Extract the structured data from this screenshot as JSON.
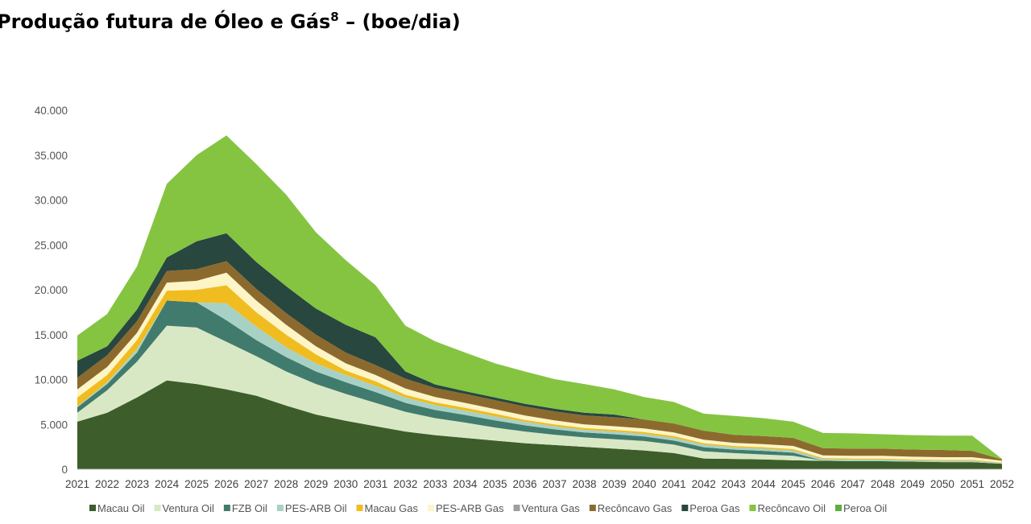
{
  "title": {
    "main": "Produção futura de Óleo e Gás",
    "sup": "8",
    "suffix": " – (boe/dia)"
  },
  "chart_data": {
    "type": "area",
    "stacked": true,
    "title": "Produção futura de Óleo e Gás8 – (boe/dia)",
    "xlabel": "",
    "ylabel": "",
    "ylim": [
      0,
      40000
    ],
    "yticks": [
      0,
      5000,
      10000,
      15000,
      20000,
      25000,
      30000,
      35000,
      40000
    ],
    "ytick_labels": [
      "0",
      "5.000",
      "10.000",
      "15.000",
      "20.000",
      "25.000",
      "30.000",
      "35.000",
      "40.000"
    ],
    "grid": false,
    "legend_position": "bottom",
    "categories": [
      "2021",
      "2022",
      "2023",
      "2024",
      "2025",
      "2026",
      "2027",
      "2028",
      "2029",
      "2030",
      "2031",
      "2032",
      "2033",
      "2034",
      "2035",
      "2036",
      "2037",
      "2038",
      "2039",
      "2040",
      "2041",
      "2042",
      "2043",
      "2044",
      "2045",
      "2046",
      "2047",
      "2048",
      "2049",
      "2050",
      "2051",
      "2052"
    ],
    "series": [
      {
        "name": "Macau Oil",
        "color": "#3d5e2b",
        "values": [
          5300,
          6300,
          8000,
          9900,
          9500,
          8900,
          8200,
          7100,
          6100,
          5400,
          4800,
          4200,
          3800,
          3500,
          3200,
          2900,
          2700,
          2500,
          2300,
          2100,
          1800,
          1200,
          1150,
          1100,
          1000,
          950,
          900,
          900,
          850,
          800,
          800,
          600
        ]
      },
      {
        "name": "Ventura Oil",
        "color": "#d9e8c4",
        "values": [
          1000,
          2500,
          4000,
          6100,
          6300,
          5300,
          4400,
          3800,
          3400,
          3000,
          2600,
          2200,
          1900,
          1700,
          1450,
          1300,
          1150,
          1050,
          1050,
          1050,
          950,
          800,
          650,
          550,
          500,
          0,
          0,
          0,
          0,
          0,
          0,
          0
        ]
      },
      {
        "name": "FZB Oil",
        "color": "#417b6d",
        "values": [
          600,
          700,
          1000,
          2800,
          2800,
          2400,
          1800,
          1600,
          1400,
          1300,
          1200,
          1000,
          900,
          850,
          800,
          700,
          600,
          550,
          550,
          500,
          450,
          450,
          400,
          400,
          350,
          0,
          0,
          0,
          0,
          0,
          0,
          0
        ]
      },
      {
        "name": "PES-ARB Oil",
        "color": "#a8d1c5",
        "values": [
          100,
          200,
          400,
          0,
          0,
          1900,
          1500,
          1100,
          900,
          800,
          700,
          600,
          550,
          500,
          450,
          400,
          350,
          300,
          300,
          300,
          300,
          300,
          250,
          250,
          250,
          200,
          200,
          200,
          150,
          150,
          150,
          100
        ]
      },
      {
        "name": "Macau Gas",
        "color": "#f0bc20",
        "values": [
          1000,
          800,
          1000,
          1100,
          1400,
          2000,
          1600,
          1400,
          1000,
          500,
          500,
          300,
          300,
          300,
          300,
          200,
          200,
          200,
          200,
          200,
          200,
          150,
          150,
          150,
          150,
          100,
          100,
          100,
          100,
          100,
          100,
          50
        ]
      },
      {
        "name": "PES-ARB Gas",
        "color": "#fdf5c5",
        "values": [
          900,
          900,
          800,
          900,
          1000,
          1400,
          1300,
          1100,
          900,
          800,
          700,
          700,
          600,
          550,
          500,
          500,
          450,
          400,
          400,
          400,
          400,
          400,
          350,
          350,
          350,
          300,
          300,
          300,
          300,
          300,
          300,
          200
        ]
      },
      {
        "name": "Ventura Gas",
        "color": "#9e9e9e",
        "values": [
          0,
          0,
          0,
          0,
          0,
          0,
          0,
          0,
          0,
          0,
          0,
          0,
          0,
          0,
          0,
          0,
          0,
          0,
          0,
          0,
          0,
          0,
          0,
          0,
          0,
          0,
          0,
          0,
          0,
          0,
          0,
          0
        ]
      },
      {
        "name": "Recôncavo Gas",
        "color": "#8c6a2e",
        "values": [
          1300,
          1300,
          1300,
          1300,
          1300,
          1300,
          1300,
          1300,
          1300,
          1200,
          1100,
          1100,
          1000,
          1000,
          1000,
          1000,
          1000,
          1000,
          1000,
          1000,
          1000,
          1000,
          900,
          900,
          900,
          800,
          800,
          800,
          800,
          800,
          700,
          150
        ]
      },
      {
        "name": "Peroa Gas",
        "color": "#27473f",
        "values": [
          1900,
          1000,
          1300,
          1500,
          3100,
          3100,
          3000,
          3000,
          2900,
          3100,
          3100,
          800,
          400,
          300,
          300,
          300,
          300,
          300,
          300,
          0,
          0,
          0,
          0,
          0,
          0,
          0,
          0,
          0,
          0,
          0,
          0,
          0
        ]
      },
      {
        "name": "Recôncavo Oil",
        "color": "#85c441",
        "values": [
          2800,
          3600,
          4800,
          8200,
          9600,
          10900,
          10900,
          10200,
          8500,
          7200,
          5800,
          5100,
          4800,
          4300,
          3800,
          3600,
          3300,
          3200,
          2800,
          2500,
          2400,
          1900,
          2100,
          2000,
          1800,
          1700,
          1700,
          1600,
          1600,
          1600,
          1700,
          50
        ]
      },
      {
        "name": "Peroa Oil",
        "color": "#5fae3e",
        "values": [
          0,
          0,
          0,
          0,
          0,
          0,
          0,
          0,
          0,
          0,
          0,
          0,
          0,
          0,
          0,
          0,
          0,
          0,
          0,
          0,
          0,
          0,
          0,
          0,
          0,
          0,
          0,
          0,
          0,
          0,
          0,
          0
        ]
      }
    ]
  }
}
